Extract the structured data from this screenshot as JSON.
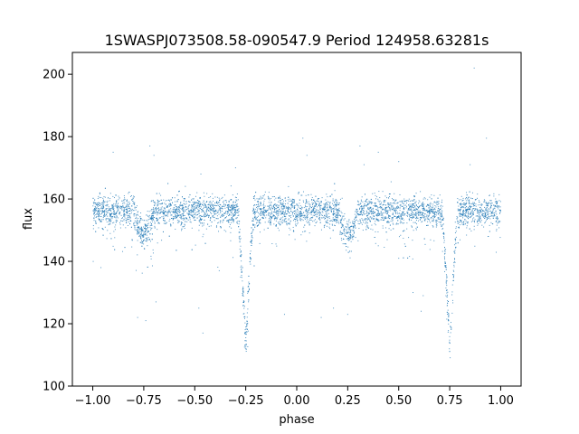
{
  "chart_data": {
    "type": "scatter",
    "title": "1SWASPJ073508.58-090547.9 Period 124958.63281s",
    "xlabel": "phase",
    "ylabel": "flux",
    "xlim": [
      -1.1,
      1.1
    ],
    "ylim": [
      100,
      207
    ],
    "xticks": [
      -1.0,
      -0.75,
      -0.5,
      -0.25,
      0.0,
      0.25,
      0.5,
      0.75,
      1.0
    ],
    "xtick_labels": [
      "−1.00",
      "−0.75",
      "−0.50",
      "−0.25",
      "0.00",
      "0.25",
      "0.50",
      "0.75",
      "1.00"
    ],
    "yticks": [
      100,
      120,
      140,
      160,
      180,
      200
    ],
    "ytick_labels": [
      "100",
      "120",
      "140",
      "160",
      "180",
      "200"
    ],
    "grid": false,
    "marker_color": "#1f77b4",
    "series": [
      {
        "phase_range": [
          -1.0,
          1.0
        ],
        "baseline_flux": 156,
        "scatter_std": 2.5,
        "primary_eclipse": {
          "phases": [
            -0.25,
            0.75
          ],
          "min_flux": 113,
          "half_width": 0.04
        },
        "secondary_eclipse": {
          "phases": [
            -0.75,
            0.25
          ],
          "min_flux": 149,
          "half_width": 0.05
        },
        "outliers": [
          [
            0.87,
            202
          ],
          [
            0.03,
            179.5
          ],
          [
            0.93,
            179.5
          ],
          [
            -0.9,
            175
          ],
          [
            -0.72,
            177
          ],
          [
            0.31,
            177
          ],
          [
            -0.7,
            174
          ],
          [
            0.4,
            175
          ],
          [
            0.05,
            174
          ],
          [
            0.5,
            172
          ],
          [
            0.85,
            171
          ],
          [
            -0.47,
            168
          ],
          [
            -0.3,
            170
          ],
          [
            0.33,
            171
          ],
          [
            0.25,
            123
          ],
          [
            -0.78,
            122
          ],
          [
            -0.74,
            121
          ],
          [
            -0.48,
            125
          ],
          [
            0.12,
            122
          ],
          [
            -0.06,
            123
          ],
          [
            -0.46,
            117
          ],
          [
            0.18,
            125
          ],
          [
            0.61,
            124
          ],
          [
            -0.69,
            127
          ],
          [
            0.57,
            130
          ],
          [
            0.62,
            129
          ],
          [
            -0.38,
            137
          ],
          [
            -0.96,
            138
          ],
          [
            0.5,
            141
          ],
          [
            0.4,
            145
          ]
        ],
        "n_points": 5200
      }
    ]
  }
}
